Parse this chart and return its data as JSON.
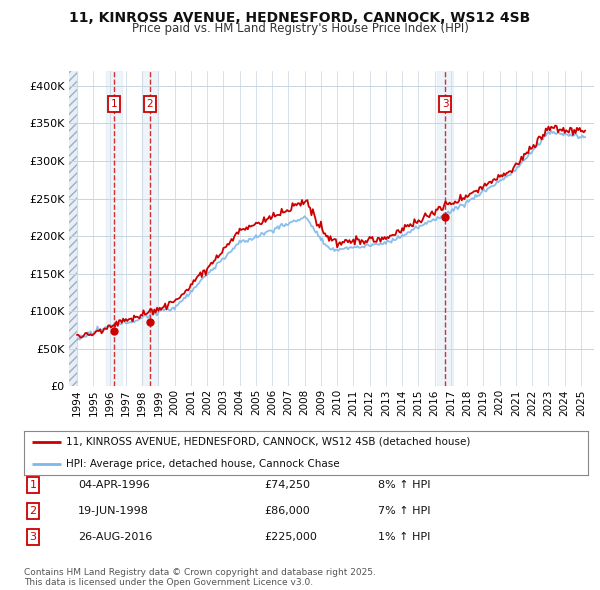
{
  "title_line1": "11, KINROSS AVENUE, HEDNESFORD, CANNOCK, WS12 4SB",
  "title_line2": "Price paid vs. HM Land Registry's House Price Index (HPI)",
  "hpi_color": "#7eb8e8",
  "price_color": "#cc0000",
  "dot_color": "#cc0000",
  "background_color": "#ffffff",
  "ylim": [
    0,
    420000
  ],
  "yticks": [
    0,
    50000,
    100000,
    150000,
    200000,
    250000,
    300000,
    350000,
    400000
  ],
  "ytick_labels": [
    "£0",
    "£50K",
    "£100K",
    "£150K",
    "£200K",
    "£250K",
    "£300K",
    "£350K",
    "£400K"
  ],
  "xmin": 1993.5,
  "xmax": 2025.8,
  "sale_points": [
    {
      "year": 1996.25,
      "price": 74250,
      "label": "1"
    },
    {
      "year": 1998.47,
      "price": 86000,
      "label": "2"
    },
    {
      "year": 2016.65,
      "price": 225000,
      "label": "3"
    }
  ],
  "legend_entries": [
    {
      "color": "#cc0000",
      "label": "11, KINROSS AVENUE, HEDNESFORD, CANNOCK, WS12 4SB (detached house)"
    },
    {
      "color": "#7eb8e8",
      "label": "HPI: Average price, detached house, Cannock Chase"
    }
  ],
  "table_rows": [
    {
      "num": "1",
      "date": "04-APR-1996",
      "price": "£74,250",
      "pct": "8% ↑ HPI"
    },
    {
      "num": "2",
      "date": "19-JUN-1998",
      "price": "£86,000",
      "pct": "7% ↑ HPI"
    },
    {
      "num": "3",
      "date": "26-AUG-2016",
      "price": "£225,000",
      "pct": "1% ↑ HPI"
    }
  ],
  "footer": "Contains HM Land Registry data © Crown copyright and database right 2025.\nThis data is licensed under the Open Government Licence v3.0."
}
